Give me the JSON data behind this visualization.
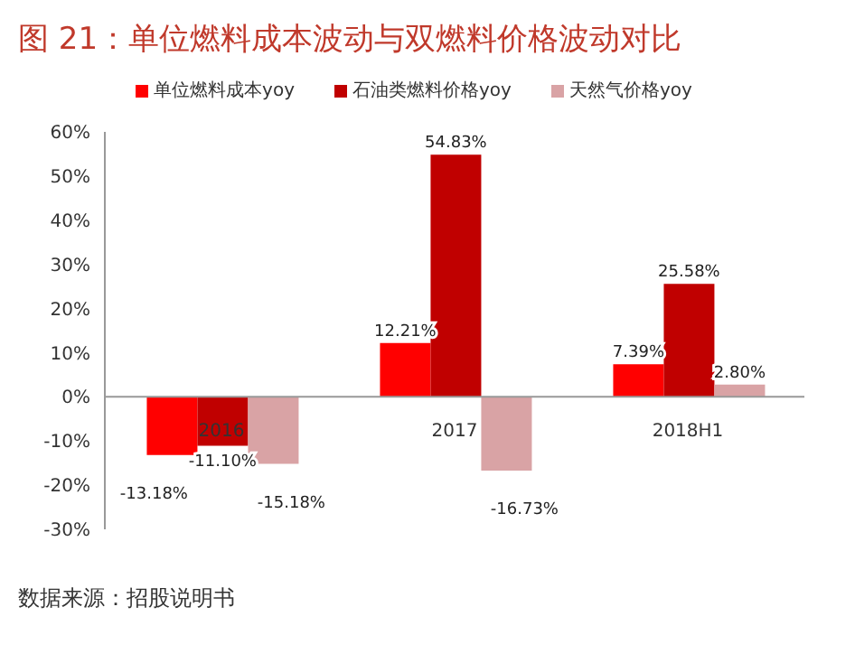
{
  "chart_data": {
    "type": "bar",
    "title": "图 21：单位燃料成本波动与双燃料价格波动对比",
    "categories": [
      "2016",
      "2017",
      "2018H1"
    ],
    "series": [
      {
        "name": "单位燃料成本yoy",
        "color": "#ff0000",
        "values": [
          -13.18,
          12.21,
          7.39
        ],
        "value_labels": [
          "-13.18%",
          "12.21%",
          "7.39%"
        ]
      },
      {
        "name": "石油类燃料价格yoy",
        "color": "#c00000",
        "values": [
          -11.1,
          54.83,
          25.58
        ],
        "value_labels": [
          "-11.10%",
          "54.83%",
          "25.58%"
        ]
      },
      {
        "name": "天然气价格yoy",
        "color": "#d9a3a5",
        "values": [
          -15.18,
          -16.73,
          2.8
        ],
        "value_labels": [
          "-15.18%",
          "-16.73%",
          "2.80%"
        ]
      }
    ],
    "ylim": [
      -30,
      60
    ],
    "yticks": [
      {
        "value": -30,
        "label": "-30%"
      },
      {
        "value": -20,
        "label": "-20%"
      },
      {
        "value": -10,
        "label": "-10%"
      },
      {
        "value": 0,
        "label": "0%"
      },
      {
        "value": 10,
        "label": "10%"
      },
      {
        "value": 20,
        "label": "20%"
      },
      {
        "value": 30,
        "label": "30%"
      },
      {
        "value": 40,
        "label": "40%"
      },
      {
        "value": 50,
        "label": "50%"
      },
      {
        "value": 60,
        "label": "60%"
      }
    ],
    "grid": false,
    "legend": "top",
    "annotations": [
      "数据来源：招股说明书"
    ]
  }
}
